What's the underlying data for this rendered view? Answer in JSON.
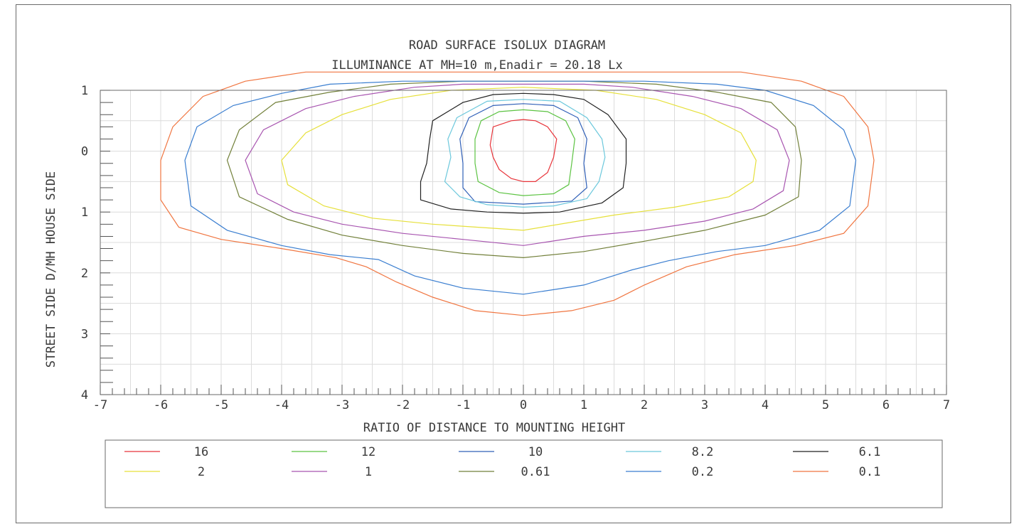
{
  "chart_data": {
    "type": "contour",
    "title": "ROAD SURFACE ISOLUX DIAGRAM",
    "subtitle": "ILLUMINANCE AT MH=10 m,Enadir = 20.18  Lx",
    "xlabel": "RATIO OF DISTANCE TO MOUNTING HEIGHT",
    "ylabel": "STREET SIDE D/MH HOUSE SIDE",
    "xlim": [
      -7,
      7
    ],
    "ylim": [
      -1,
      4
    ],
    "y_inverted": true,
    "x_ticks": [
      "-7",
      "-6",
      "-5",
      "-4",
      "-3",
      "-2",
      "-1",
      "0",
      "1",
      "2",
      "3",
      "4",
      "5",
      "6",
      "7"
    ],
    "y_ticks": [
      {
        "value": -1,
        "label": "1"
      },
      {
        "value": 0,
        "label": "0"
      },
      {
        "value": 1,
        "label": "1"
      },
      {
        "value": 2,
        "label": "2"
      },
      {
        "value": 3,
        "label": "3"
      },
      {
        "value": 4,
        "label": "4"
      }
    ],
    "grid": true,
    "legend_position": "bottom",
    "series": [
      {
        "name": "16",
        "color": "#e8343a",
        "points": [
          [
            -0.5,
            -0.4
          ],
          [
            -0.2,
            -0.5
          ],
          [
            0,
            -0.52
          ],
          [
            0.2,
            -0.5
          ],
          [
            0.4,
            -0.4
          ],
          [
            0.55,
            -0.2
          ],
          [
            0.5,
            0.1
          ],
          [
            0.4,
            0.35
          ],
          [
            0.2,
            0.5
          ],
          [
            0,
            0.5
          ],
          [
            -0.2,
            0.45
          ],
          [
            -0.4,
            0.3
          ],
          [
            -0.5,
            0.1
          ],
          [
            -0.55,
            -0.1
          ],
          [
            -0.5,
            -0.4
          ]
        ]
      },
      {
        "name": "12",
        "color": "#5cc342",
        "points": [
          [
            -0.7,
            -0.5
          ],
          [
            -0.4,
            -0.65
          ],
          [
            0,
            -0.68
          ],
          [
            0.4,
            -0.65
          ],
          [
            0.7,
            -0.5
          ],
          [
            0.85,
            -0.2
          ],
          [
            0.8,
            0.2
          ],
          [
            0.75,
            0.55
          ],
          [
            0.5,
            0.7
          ],
          [
            0,
            0.73
          ],
          [
            -0.4,
            0.68
          ],
          [
            -0.75,
            0.5
          ],
          [
            -0.8,
            0.2
          ],
          [
            -0.8,
            -0.2
          ],
          [
            -0.7,
            -0.5
          ]
        ]
      },
      {
        "name": "10",
        "color": "#3060b8",
        "points": [
          [
            -0.9,
            -0.55
          ],
          [
            -0.5,
            -0.75
          ],
          [
            0,
            -0.78
          ],
          [
            0.5,
            -0.75
          ],
          [
            0.9,
            -0.55
          ],
          [
            1.05,
            -0.2
          ],
          [
            1,
            0.2
          ],
          [
            1.05,
            0.6
          ],
          [
            0.8,
            0.82
          ],
          [
            0,
            0.87
          ],
          [
            -0.8,
            0.83
          ],
          [
            -1.0,
            0.6
          ],
          [
            -1.0,
            0.2
          ],
          [
            -1.05,
            -0.2
          ],
          [
            -0.9,
            -0.55
          ]
        ]
      },
      {
        "name": "8.2",
        "color": "#6cc8dc",
        "points": [
          [
            -1.1,
            -0.55
          ],
          [
            -0.6,
            -0.82
          ],
          [
            0,
            -0.85
          ],
          [
            0.6,
            -0.82
          ],
          [
            1.05,
            -0.55
          ],
          [
            1.3,
            -0.2
          ],
          [
            1.35,
            0.1
          ],
          [
            1.25,
            0.5
          ],
          [
            1.05,
            0.78
          ],
          [
            0.5,
            0.9
          ],
          [
            0,
            0.92
          ],
          [
            -0.6,
            0.88
          ],
          [
            -1.05,
            0.75
          ],
          [
            -1.3,
            0.5
          ],
          [
            -1.2,
            0.1
          ],
          [
            -1.25,
            -0.2
          ],
          [
            -1.1,
            -0.55
          ]
        ]
      },
      {
        "name": "6.1",
        "color": "#222222",
        "points": [
          [
            -1.5,
            -0.5
          ],
          [
            -1.0,
            -0.8
          ],
          [
            -0.5,
            -0.93
          ],
          [
            0,
            -0.95
          ],
          [
            0.5,
            -0.93
          ],
          [
            1.0,
            -0.85
          ],
          [
            1.4,
            -0.6
          ],
          [
            1.7,
            -0.2
          ],
          [
            1.7,
            0.2
          ],
          [
            1.65,
            0.6
          ],
          [
            1.3,
            0.85
          ],
          [
            0.6,
            1.0
          ],
          [
            0,
            1.02
          ],
          [
            -0.6,
            1.0
          ],
          [
            -1.2,
            0.95
          ],
          [
            -1.7,
            0.8
          ],
          [
            -1.7,
            0.5
          ],
          [
            -1.6,
            0.2
          ],
          [
            -1.55,
            -0.2
          ],
          [
            -1.5,
            -0.5
          ]
        ]
      },
      {
        "name": "2",
        "color": "#e6e03a",
        "points": [
          [
            -4.0,
            0.15
          ],
          [
            -3.6,
            -0.3
          ],
          [
            -3.0,
            -0.6
          ],
          [
            -2.2,
            -0.85
          ],
          [
            -1.2,
            -1.0
          ],
          [
            0,
            -1.05
          ],
          [
            1.2,
            -1.0
          ],
          [
            2.2,
            -0.85
          ],
          [
            3.0,
            -0.6
          ],
          [
            3.6,
            -0.3
          ],
          [
            3.85,
            0.15
          ],
          [
            3.8,
            0.5
          ],
          [
            3.4,
            0.75
          ],
          [
            2.5,
            0.92
          ],
          [
            1.5,
            1.05
          ],
          [
            0,
            1.3
          ],
          [
            -1.5,
            1.2
          ],
          [
            -2.5,
            1.1
          ],
          [
            -3.3,
            0.9
          ],
          [
            -3.9,
            0.55
          ],
          [
            -4.0,
            0.15
          ]
        ]
      },
      {
        "name": "1",
        "color": "#a855b0",
        "points": [
          [
            -4.6,
            0.15
          ],
          [
            -4.3,
            -0.35
          ],
          [
            -3.6,
            -0.7
          ],
          [
            -2.8,
            -0.9
          ],
          [
            -1.8,
            -1.05
          ],
          [
            -1.0,
            -1.1
          ],
          [
            1.0,
            -1.1
          ],
          [
            1.8,
            -1.05
          ],
          [
            2.8,
            -0.9
          ],
          [
            3.6,
            -0.7
          ],
          [
            4.2,
            -0.35
          ],
          [
            4.4,
            0.15
          ],
          [
            4.3,
            0.65
          ],
          [
            3.8,
            0.95
          ],
          [
            3.0,
            1.15
          ],
          [
            2.0,
            1.3
          ],
          [
            1.0,
            1.4
          ],
          [
            0,
            1.55
          ],
          [
            -1.0,
            1.45
          ],
          [
            -2.0,
            1.35
          ],
          [
            -3.0,
            1.2
          ],
          [
            -3.8,
            1.0
          ],
          [
            -4.4,
            0.7
          ],
          [
            -4.6,
            0.15
          ]
        ]
      },
      {
        "name": "0.61",
        "color": "#72803a",
        "points": [
          [
            -4.9,
            0.15
          ],
          [
            -4.7,
            -0.35
          ],
          [
            -4.1,
            -0.8
          ],
          [
            -3.2,
            -0.97
          ],
          [
            -2.2,
            -1.1
          ],
          [
            -1.0,
            -1.15
          ],
          [
            1.0,
            -1.15
          ],
          [
            2.2,
            -1.1
          ],
          [
            3.2,
            -0.97
          ],
          [
            4.1,
            -0.8
          ],
          [
            4.5,
            -0.4
          ],
          [
            4.6,
            0.15
          ],
          [
            4.55,
            0.75
          ],
          [
            4.0,
            1.05
          ],
          [
            3.0,
            1.3
          ],
          [
            2.0,
            1.48
          ],
          [
            1.0,
            1.65
          ],
          [
            0,
            1.75
          ],
          [
            -1.0,
            1.68
          ],
          [
            -2.0,
            1.55
          ],
          [
            -3.0,
            1.38
          ],
          [
            -3.9,
            1.12
          ],
          [
            -4.7,
            0.75
          ],
          [
            -4.9,
            0.15
          ]
        ]
      },
      {
        "name": "0.2",
        "color": "#3a7ed0",
        "points": [
          [
            -5.6,
            0.15
          ],
          [
            -5.4,
            -0.4
          ],
          [
            -4.8,
            -0.75
          ],
          [
            -4.0,
            -0.95
          ],
          [
            -3.2,
            -1.1
          ],
          [
            -2.0,
            -1.15
          ],
          [
            2.0,
            -1.15
          ],
          [
            3.2,
            -1.1
          ],
          [
            4.0,
            -1.0
          ],
          [
            4.8,
            -0.75
          ],
          [
            5.3,
            -0.35
          ],
          [
            5.5,
            0.15
          ],
          [
            5.4,
            0.9
          ],
          [
            4.9,
            1.3
          ],
          [
            4.0,
            1.55
          ],
          [
            3.2,
            1.65
          ],
          [
            2.4,
            1.8
          ],
          [
            1.8,
            1.95
          ],
          [
            1.0,
            2.2
          ],
          [
            0,
            2.35
          ],
          [
            -1.0,
            2.25
          ],
          [
            -1.8,
            2.05
          ],
          [
            -2.4,
            1.78
          ],
          [
            -3.2,
            1.7
          ],
          [
            -4.0,
            1.55
          ],
          [
            -4.9,
            1.3
          ],
          [
            -5.5,
            0.9
          ],
          [
            -5.6,
            0.15
          ]
        ]
      },
      {
        "name": "0.1",
        "color": "#f07540",
        "points": [
          [
            -6.0,
            0.15
          ],
          [
            -5.8,
            -0.4
          ],
          [
            -5.3,
            -0.9
          ],
          [
            -4.6,
            -1.15
          ],
          [
            -3.6,
            -1.3
          ],
          [
            -2.5,
            -1.3
          ],
          [
            2.5,
            -1.3
          ],
          [
            3.6,
            -1.3
          ],
          [
            4.6,
            -1.15
          ],
          [
            5.3,
            -0.9
          ],
          [
            5.7,
            -0.4
          ],
          [
            5.8,
            0.15
          ],
          [
            5.7,
            0.9
          ],
          [
            5.3,
            1.35
          ],
          [
            4.5,
            1.55
          ],
          [
            3.5,
            1.7
          ],
          [
            2.7,
            1.9
          ],
          [
            2.0,
            2.2
          ],
          [
            1.5,
            2.45
          ],
          [
            0.8,
            2.62
          ],
          [
            0,
            2.7
          ],
          [
            -0.8,
            2.62
          ],
          [
            -1.5,
            2.4
          ],
          [
            -2.1,
            2.15
          ],
          [
            -2.6,
            1.9
          ],
          [
            -3.1,
            1.75
          ],
          [
            -4.0,
            1.6
          ],
          [
            -5.0,
            1.45
          ],
          [
            -5.7,
            1.25
          ],
          [
            -6.0,
            0.8
          ],
          [
            -6.0,
            0.15
          ]
        ]
      }
    ]
  }
}
